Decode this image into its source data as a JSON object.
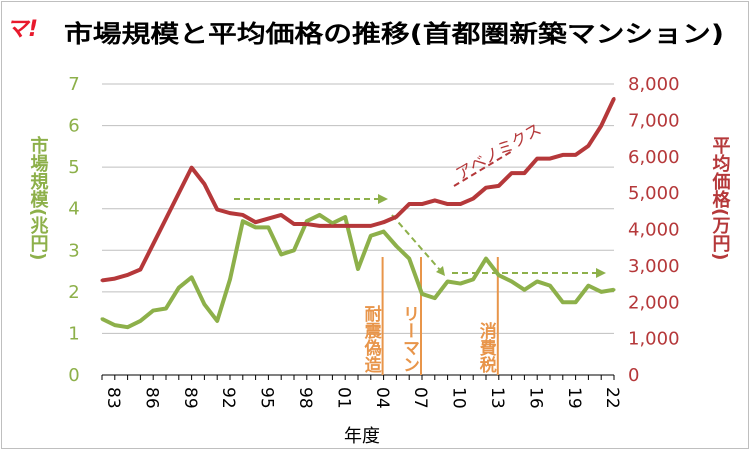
{
  "logo": {
    "text": "マ!",
    "color": "#e8192c"
  },
  "chart_data": {
    "type": "line",
    "title": "市場規模と平均価格の推移(首都圏新築マンション)",
    "xlabel": "年度",
    "x_years": [
      1983,
      1984,
      1985,
      1986,
      1987,
      1988,
      1989,
      1990,
      1991,
      1992,
      1993,
      1994,
      1995,
      1996,
      1997,
      1998,
      1999,
      2000,
      2001,
      2002,
      2003,
      2004,
      2005,
      2006,
      2007,
      2008,
      2009,
      2010,
      2011,
      2012,
      2013,
      2014,
      2015,
      2016,
      2017,
      2018,
      2019,
      2020,
      2021,
      2022,
      2023
    ],
    "x_tick_labels": [
      "83",
      "86",
      "89",
      "92",
      "95",
      "98",
      "01",
      "04",
      "07",
      "10",
      "13",
      "16",
      "19",
      "22"
    ],
    "x_tick_years": [
      1983,
      1986,
      1989,
      1992,
      1995,
      1998,
      2001,
      2004,
      2007,
      2010,
      2013,
      2016,
      2019,
      2022
    ],
    "left_axis": {
      "label": "市場規模(兆円)",
      "min": 0,
      "max": 7,
      "ticks": [
        "0",
        "1",
        "2",
        "3",
        "4",
        "5",
        "6",
        "7"
      ],
      "color": "#8db04a"
    },
    "right_axis": {
      "label": "平均価格(万円)",
      "min": 0,
      "max": 8000,
      "ticks": [
        "0",
        "1,000",
        "2,000",
        "3,000",
        "4,000",
        "5,000",
        "6,000",
        "7,000",
        "8,000"
      ],
      "color": "#b5383a"
    },
    "series": [
      {
        "axis": "left",
        "color": "#8db04a",
        "values": [
          1.35,
          1.2,
          1.15,
          1.3,
          1.55,
          1.6,
          2.1,
          2.35,
          1.7,
          1.3,
          2.3,
          3.7,
          3.55,
          3.55,
          2.9,
          3.0,
          3.7,
          3.85,
          3.65,
          3.8,
          2.55,
          3.35,
          3.45,
          3.1,
          2.8,
          1.95,
          1.85,
          2.25,
          2.2,
          2.3,
          2.8,
          2.4,
          2.25,
          2.05,
          2.25,
          2.15,
          1.75,
          1.75,
          2.15,
          2.0,
          2.05
        ]
      },
      {
        "axis": "right",
        "color": "#b5383a",
        "values": [
          2600,
          2650,
          2750,
          2900,
          3600,
          4300,
          5000,
          5700,
          5250,
          4550,
          4450,
          4400,
          4200,
          4300,
          4400,
          4150,
          4150,
          4100,
          4100,
          4100,
          4100,
          4100,
          4200,
          4350,
          4700,
          4700,
          4800,
          4700,
          4700,
          4850,
          5150,
          5200,
          5550,
          5550,
          5950,
          5950,
          6050,
          6050,
          6300,
          6850,
          7600
        ]
      }
    ],
    "annotations": [
      {
        "text": "耐震偽造",
        "year": 2005
      },
      {
        "text": "リーマン",
        "year": 2008
      },
      {
        "text": "消費税",
        "year": 2014
      },
      {
        "text": "アベノミクス"
      }
    ],
    "grid": true
  }
}
